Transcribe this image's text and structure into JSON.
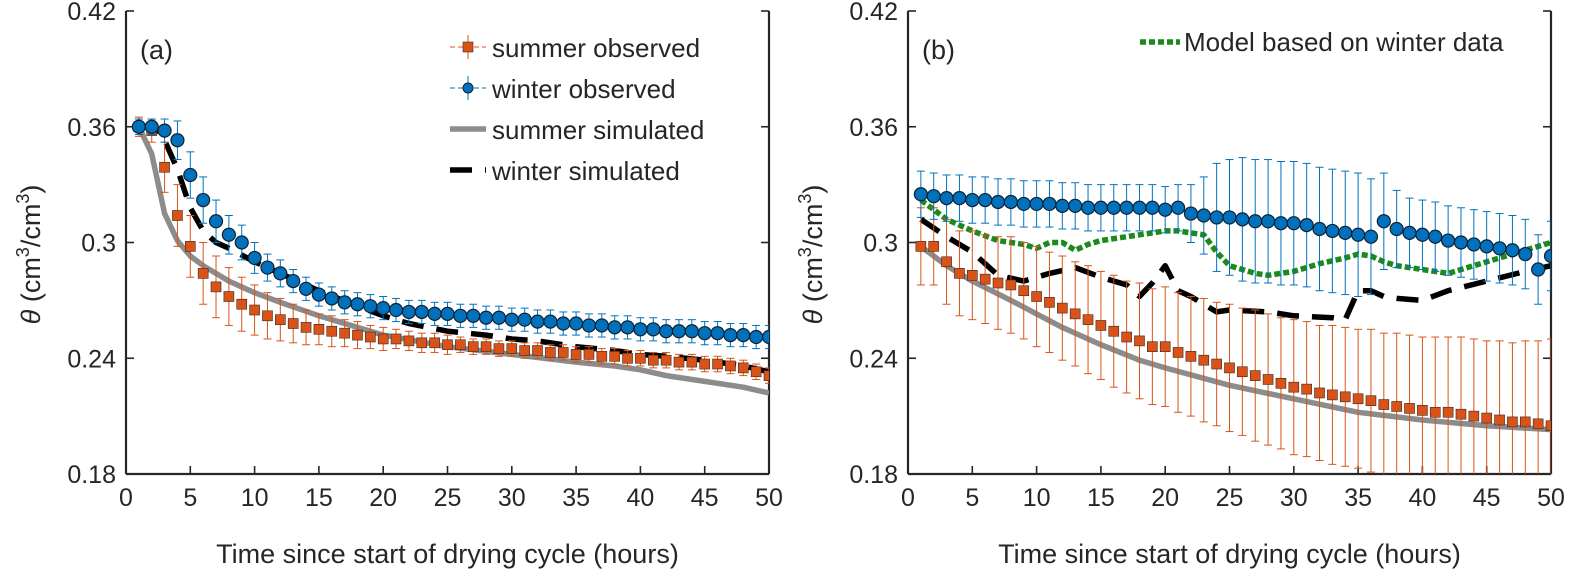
{
  "colors": {
    "summer_observed": "#d95319",
    "winter_observed": "#0072bd",
    "summer_simulated": "#8c8c8c",
    "winter_simulated": "#000000",
    "model_winter": "#1a8a1a",
    "axis": "#262626"
  },
  "chart_data": [
    {
      "type": "line",
      "panel": "(a)",
      "title": "",
      "xlabel": "Time since start of drying cycle (hours)",
      "ylabel": "θ (cm³/cm³)",
      "ylabel_symbol": "θ",
      "ylabel_unit_1": "(cm",
      "ylabel_exp_1": "3",
      "ylabel_unit_2": "/cm",
      "ylabel_exp_2": "3",
      "ylabel_unit_3": ")",
      "xlim": [
        0,
        50
      ],
      "ylim": [
        0.18,
        0.42
      ],
      "xticks": [
        0,
        5,
        10,
        15,
        20,
        25,
        30,
        35,
        40,
        45,
        50
      ],
      "xtick_labels": [
        "0",
        "5",
        "10",
        "15",
        "20",
        "25",
        "30",
        "35",
        "40",
        "45",
        "50"
      ],
      "yticks": [
        0.18,
        0.24,
        0.3,
        0.36,
        0.42
      ],
      "ytick_labels": [
        "0.18",
        "0.24",
        "0.3",
        "0.36",
        "0.42"
      ],
      "grid": false,
      "legend_position": "top-right",
      "legend": [
        "summer observed",
        "winter observed",
        "summer simulated",
        "winter simulated"
      ],
      "observed_x": [
        1,
        2,
        3,
        4,
        5,
        6,
        7,
        8,
        9,
        10,
        11,
        12,
        13,
        14,
        15,
        16,
        17,
        18,
        19,
        20,
        21,
        22,
        23,
        24,
        25,
        26,
        27,
        28,
        29,
        30,
        31,
        32,
        33,
        34,
        35,
        36,
        37,
        38,
        39,
        40,
        41,
        42,
        43,
        44,
        45,
        46,
        47,
        48,
        49,
        50
      ],
      "series": [
        {
          "name": "summer observed",
          "kind": "observed",
          "marker": "square",
          "values": [
            0.36,
            0.358,
            0.339,
            0.314,
            0.298,
            0.284,
            0.277,
            0.272,
            0.268,
            0.265,
            0.262,
            0.26,
            0.258,
            0.256,
            0.255,
            0.254,
            0.253,
            0.252,
            0.251,
            0.25,
            0.25,
            0.249,
            0.248,
            0.248,
            0.247,
            0.247,
            0.246,
            0.246,
            0.245,
            0.245,
            0.244,
            0.244,
            0.243,
            0.243,
            0.242,
            0.242,
            0.241,
            0.241,
            0.24,
            0.24,
            0.239,
            0.239,
            0.238,
            0.238,
            0.237,
            0.237,
            0.236,
            0.235,
            0.233,
            0.231
          ],
          "errors": [
            0.005,
            0.006,
            0.013,
            0.016,
            0.016,
            0.016,
            0.016,
            0.015,
            0.014,
            0.013,
            0.012,
            0.011,
            0.01,
            0.009,
            0.008,
            0.008,
            0.007,
            0.007,
            0.006,
            0.006,
            0.005,
            0.005,
            0.005,
            0.005,
            0.005,
            0.004,
            0.004,
            0.004,
            0.004,
            0.004,
            0.004,
            0.004,
            0.004,
            0.004,
            0.004,
            0.004,
            0.004,
            0.004,
            0.004,
            0.004,
            0.004,
            0.004,
            0.004,
            0.004,
            0.004,
            0.004,
            0.004,
            0.004,
            0.004,
            0.004
          ]
        },
        {
          "name": "winter observed",
          "kind": "observed",
          "marker": "circle",
          "values": [
            0.36,
            0.36,
            0.358,
            0.353,
            0.335,
            0.322,
            0.311,
            0.304,
            0.3,
            0.292,
            0.287,
            0.284,
            0.28,
            0.276,
            0.273,
            0.271,
            0.269,
            0.268,
            0.267,
            0.266,
            0.265,
            0.264,
            0.264,
            0.263,
            0.263,
            0.262,
            0.262,
            0.261,
            0.261,
            0.26,
            0.26,
            0.259,
            0.259,
            0.258,
            0.258,
            0.257,
            0.257,
            0.256,
            0.256,
            0.255,
            0.255,
            0.254,
            0.254,
            0.254,
            0.253,
            0.253,
            0.252,
            0.252,
            0.251,
            0.251
          ],
          "errors": [
            0.004,
            0.004,
            0.006,
            0.01,
            0.012,
            0.012,
            0.011,
            0.01,
            0.009,
            0.008,
            0.007,
            0.007,
            0.006,
            0.006,
            0.006,
            0.006,
            0.006,
            0.006,
            0.006,
            0.006,
            0.006,
            0.006,
            0.006,
            0.006,
            0.006,
            0.006,
            0.006,
            0.006,
            0.006,
            0.006,
            0.006,
            0.006,
            0.006,
            0.006,
            0.006,
            0.006,
            0.006,
            0.006,
            0.006,
            0.006,
            0.006,
            0.006,
            0.006,
            0.006,
            0.006,
            0.006,
            0.006,
            0.006,
            0.006,
            0.006
          ]
        },
        {
          "name": "summer simulated",
          "kind": "line",
          "x": [
            1,
            2,
            3,
            4,
            5,
            6,
            8,
            10,
            12,
            15,
            18,
            20,
            25,
            30,
            35,
            38,
            40,
            42,
            45,
            48,
            50
          ],
          "values": [
            0.36,
            0.346,
            0.315,
            0.301,
            0.293,
            0.288,
            0.28,
            0.274,
            0.269,
            0.262,
            0.256,
            0.252,
            0.246,
            0.242,
            0.238,
            0.236,
            0.234,
            0.231,
            0.228,
            0.225,
            0.222
          ]
        },
        {
          "name": "winter simulated",
          "kind": "line",
          "x": [
            1,
            2,
            3,
            4,
            5,
            6,
            7,
            8,
            10,
            12,
            15,
            18,
            20,
            22,
            25,
            28,
            30,
            32,
            35,
            38,
            40,
            42,
            45,
            48,
            50
          ],
          "values": [
            0.36,
            0.36,
            0.353,
            0.338,
            0.318,
            0.306,
            0.3,
            0.297,
            0.29,
            0.284,
            0.275,
            0.267,
            0.262,
            0.258,
            0.254,
            0.252,
            0.25,
            0.249,
            0.246,
            0.244,
            0.242,
            0.241,
            0.239,
            0.236,
            0.233
          ]
        }
      ]
    },
    {
      "type": "line",
      "panel": "(b)",
      "title": "",
      "xlabel": "Time since start of drying cycle (hours)",
      "ylabel": "θ (cm³/cm³)",
      "ylabel_symbol": "θ",
      "ylabel_unit_1": "(cm",
      "ylabel_exp_1": "3",
      "ylabel_unit_2": "/cm",
      "ylabel_exp_2": "3",
      "ylabel_unit_3": ")",
      "xlim": [
        0,
        50
      ],
      "ylim": [
        0.18,
        0.42
      ],
      "xticks": [
        0,
        5,
        10,
        15,
        20,
        25,
        30,
        35,
        40,
        45,
        50
      ],
      "xtick_labels": [
        "0",
        "5",
        "10",
        "15",
        "20",
        "25",
        "30",
        "35",
        "40",
        "45",
        "50"
      ],
      "yticks": [
        0.18,
        0.24,
        0.3,
        0.36,
        0.42
      ],
      "ytick_labels": [
        "0.18",
        "0.24",
        "0.3",
        "0.36",
        "0.42"
      ],
      "grid": false,
      "legend_position": "top-right",
      "legend": [
        "Model based on winter data"
      ],
      "observed_x": [
        1,
        2,
        3,
        4,
        5,
        6,
        7,
        8,
        9,
        10,
        11,
        12,
        13,
        14,
        15,
        16,
        17,
        18,
        19,
        20,
        21,
        22,
        23,
        24,
        25,
        26,
        27,
        28,
        29,
        30,
        31,
        32,
        33,
        34,
        35,
        36,
        37,
        38,
        39,
        40,
        41,
        42,
        43,
        44,
        45,
        46,
        47,
        48,
        49,
        50
      ],
      "series": [
        {
          "name": "summer observed",
          "kind": "observed",
          "marker": "square",
          "values": [
            0.298,
            0.298,
            0.29,
            0.284,
            0.283,
            0.281,
            0.279,
            0.278,
            0.275,
            0.272,
            0.269,
            0.266,
            0.263,
            0.26,
            0.257,
            0.254,
            0.251,
            0.249,
            0.246,
            0.246,
            0.243,
            0.241,
            0.239,
            0.237,
            0.235,
            0.233,
            0.231,
            0.229,
            0.227,
            0.225,
            0.224,
            0.222,
            0.221,
            0.22,
            0.219,
            0.218,
            0.216,
            0.215,
            0.214,
            0.213,
            0.212,
            0.212,
            0.211,
            0.21,
            0.209,
            0.208,
            0.207,
            0.207,
            0.206,
            0.205
          ],
          "errors": [
            0.02,
            0.02,
            0.022,
            0.022,
            0.023,
            0.023,
            0.024,
            0.025,
            0.025,
            0.026,
            0.026,
            0.027,
            0.027,
            0.028,
            0.028,
            0.029,
            0.029,
            0.03,
            0.03,
            0.031,
            0.031,
            0.031,
            0.032,
            0.032,
            0.033,
            0.033,
            0.034,
            0.034,
            0.034,
            0.035,
            0.035,
            0.035,
            0.036,
            0.036,
            0.036,
            0.037,
            0.037,
            0.038,
            0.038,
            0.038,
            0.039,
            0.039,
            0.04,
            0.04,
            0.04,
            0.041,
            0.041,
            0.042,
            0.043,
            0.045
          ]
        },
        {
          "name": "winter observed",
          "kind": "observed",
          "marker": "circle",
          "values": [
            0.325,
            0.324,
            0.323,
            0.323,
            0.322,
            0.322,
            0.321,
            0.321,
            0.32,
            0.32,
            0.32,
            0.319,
            0.319,
            0.318,
            0.318,
            0.318,
            0.318,
            0.318,
            0.318,
            0.317,
            0.318,
            0.315,
            0.314,
            0.313,
            0.313,
            0.312,
            0.311,
            0.311,
            0.31,
            0.31,
            0.309,
            0.307,
            0.306,
            0.305,
            0.304,
            0.303,
            0.311,
            0.307,
            0.305,
            0.304,
            0.303,
            0.301,
            0.3,
            0.299,
            0.298,
            0.297,
            0.296,
            0.294,
            0.286,
            0.293
          ],
          "errors": [
            0.012,
            0.012,
            0.012,
            0.012,
            0.012,
            0.012,
            0.012,
            0.012,
            0.012,
            0.012,
            0.012,
            0.012,
            0.012,
            0.012,
            0.012,
            0.012,
            0.012,
            0.012,
            0.012,
            0.012,
            0.012,
            0.015,
            0.02,
            0.028,
            0.03,
            0.032,
            0.032,
            0.032,
            0.032,
            0.032,
            0.032,
            0.032,
            0.032,
            0.032,
            0.032,
            0.03,
            0.025,
            0.02,
            0.018,
            0.018,
            0.018,
            0.018,
            0.018,
            0.018,
            0.018,
            0.018,
            0.018,
            0.018,
            0.018,
            0.018
          ]
        },
        {
          "name": "summer simulated",
          "kind": "line",
          "x": [
            1,
            3,
            5,
            8,
            10,
            12,
            15,
            18,
            20,
            25,
            30,
            35,
            40,
            45,
            50
          ],
          "values": [
            0.298,
            0.288,
            0.28,
            0.27,
            0.263,
            0.256,
            0.247,
            0.239,
            0.235,
            0.226,
            0.219,
            0.212,
            0.208,
            0.205,
            0.203
          ]
        },
        {
          "name": "winter simulated",
          "kind": "line",
          "x": [
            1,
            3,
            5,
            7,
            9,
            11,
            13,
            15,
            17,
            18,
            19,
            20,
            21,
            22,
            23,
            24,
            25,
            28,
            30,
            33,
            34,
            35,
            36,
            37,
            38,
            40,
            42,
            45,
            48,
            50
          ],
          "values": [
            0.312,
            0.303,
            0.295,
            0.283,
            0.28,
            0.284,
            0.287,
            0.282,
            0.278,
            0.272,
            0.279,
            0.288,
            0.275,
            0.272,
            0.268,
            0.264,
            0.265,
            0.264,
            0.262,
            0.261,
            0.26,
            0.275,
            0.275,
            0.272,
            0.271,
            0.27,
            0.275,
            0.28,
            0.285,
            0.288
          ]
        },
        {
          "name": "Model based on winter data",
          "kind": "line",
          "x": [
            1,
            3,
            5,
            7,
            9,
            10,
            11,
            12,
            13,
            14,
            15,
            16,
            17,
            18,
            19,
            20,
            21,
            22,
            23,
            24,
            25,
            26,
            27,
            28,
            30,
            32,
            34,
            35,
            36,
            37,
            38,
            40,
            42,
            45,
            48,
            50
          ],
          "values": [
            0.322,
            0.312,
            0.306,
            0.301,
            0.299,
            0.297,
            0.3,
            0.3,
            0.296,
            0.299,
            0.301,
            0.302,
            0.303,
            0.304,
            0.305,
            0.306,
            0.306,
            0.305,
            0.304,
            0.295,
            0.288,
            0.286,
            0.284,
            0.283,
            0.285,
            0.289,
            0.292,
            0.294,
            0.293,
            0.29,
            0.288,
            0.286,
            0.284,
            0.29,
            0.296,
            0.3
          ]
        }
      ]
    }
  ]
}
